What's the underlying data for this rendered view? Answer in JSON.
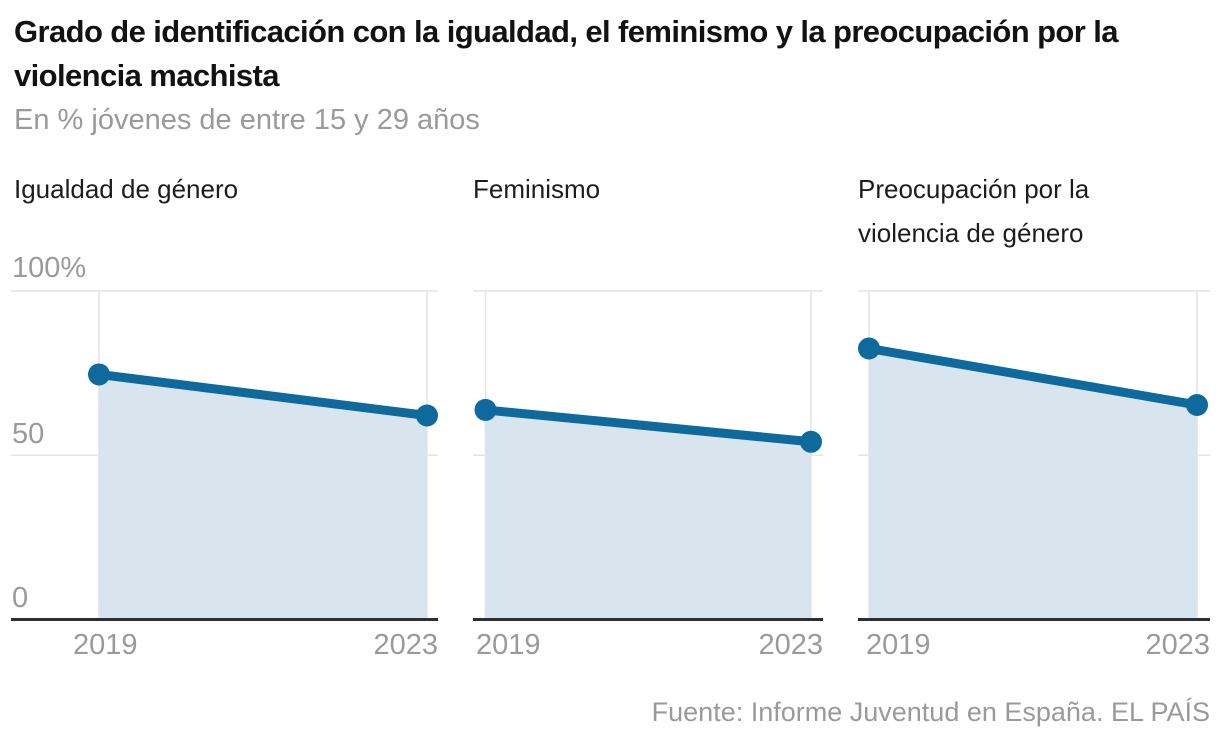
{
  "header": {
    "title": "Grado de identificación con la igualdad, el feminismo y la preocupación por la violencia machista",
    "subtitle": "En % jóvenes de entre 15 y 29 años"
  },
  "footer": {
    "source": "Fuente: Informe Juventud en España. EL PAÍS"
  },
  "chart_data": {
    "type": "area",
    "x": [
      2019,
      2023
    ],
    "x_tick_labels": [
      "2019",
      "2023"
    ],
    "ylim": [
      0,
      100
    ],
    "y_ticks": [
      {
        "value": 100,
        "label": "100%"
      },
      {
        "value": 50,
        "label": "50"
      },
      {
        "value": 0,
        "label": "0"
      }
    ],
    "grid": true,
    "legend": "none",
    "series": [
      {
        "name": "Igualdad de género",
        "values": [
          74.6,
          62.1
        ]
      },
      {
        "name": "Feminismo",
        "values": [
          63.8,
          54.1
        ]
      },
      {
        "name": "Preocupación por la violencia de género",
        "values": [
          82.5,
          65.3
        ]
      }
    ],
    "colors": {
      "line": "#0e699c",
      "area": "#d8e4ee",
      "grid": "#e4e4e4",
      "axis": "#2f2f2f",
      "muted_text": "#9a9a9a",
      "title_text": "#121212"
    }
  }
}
